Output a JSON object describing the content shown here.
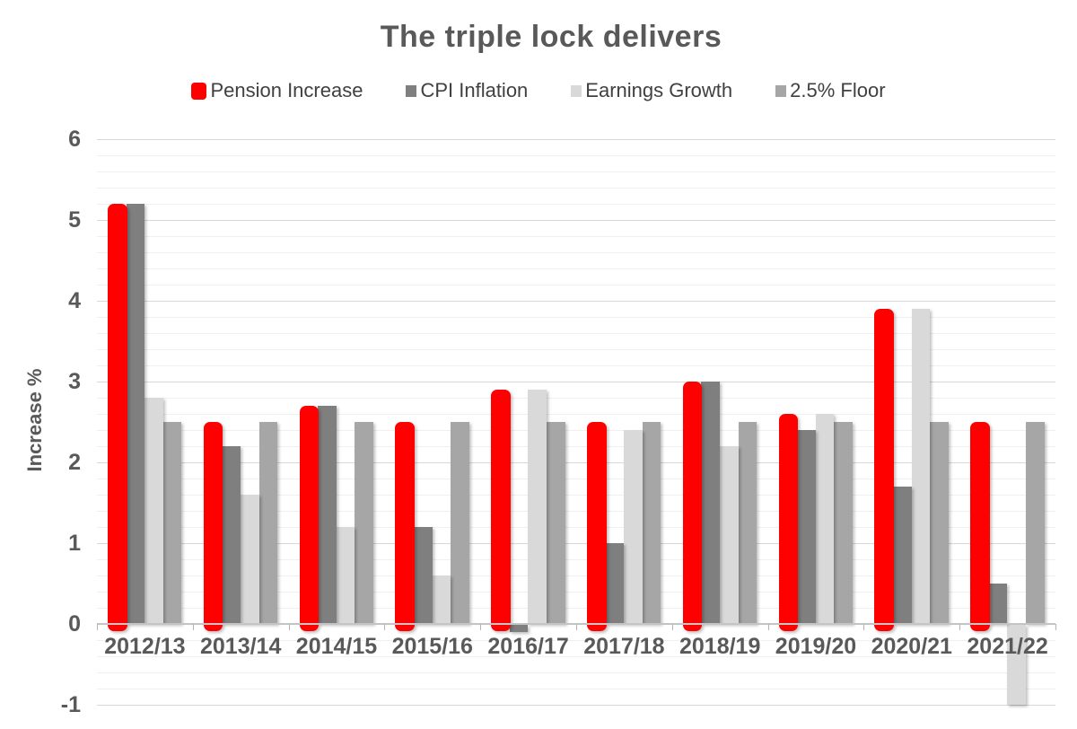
{
  "title": "The triple lock delivers",
  "colors": {
    "heading_text": "#595959",
    "axis_text": "#595959",
    "legend_text": "#404040",
    "pension_increase": "#ff0000",
    "cpi_inflation": "#7f7f7f",
    "earnings_growth": "#d9d9d9",
    "floor": "#a6a6a6",
    "gridline_minor": "#f0f0f0",
    "gridline_major": "#d8d8d8",
    "axis_line": "#c4c4c4"
  },
  "chart_data": {
    "type": "bar",
    "title": "The triple lock delivers",
    "xlabel": "",
    "ylabel": "Increase %",
    "ylim": [
      -1,
      6
    ],
    "y_major_ticks": [
      6,
      5,
      4,
      3,
      2,
      1,
      0,
      -1
    ],
    "y_minor_step": 0.2,
    "grid": true,
    "legend_position": "top",
    "categories": [
      "2012/13",
      "2013/14",
      "2014/15",
      "2015/16",
      "2016/17",
      "2017/18",
      "2018/19",
      "2019/20",
      "2020/21",
      "2021/22"
    ],
    "series": [
      {
        "name": "Pension Increase",
        "color": "#ff0000",
        "values": [
          5.2,
          2.5,
          2.7,
          2.5,
          2.9,
          2.5,
          3.0,
          2.6,
          3.9,
          2.5
        ]
      },
      {
        "name": "CPI Inflation",
        "color": "#7f7f7f",
        "values": [
          5.2,
          2.2,
          2.7,
          1.2,
          -0.1,
          1.0,
          3.0,
          2.4,
          1.7,
          0.5
        ]
      },
      {
        "name": "Earnings Growth",
        "color": "#d9d9d9",
        "values": [
          2.8,
          1.6,
          1.2,
          0.6,
          2.9,
          2.4,
          2.2,
          2.6,
          3.9,
          -1.0
        ]
      },
      {
        "name": "2.5% Floor",
        "color": "#a6a6a6",
        "values": [
          2.5,
          2.5,
          2.5,
          2.5,
          2.5,
          2.5,
          2.5,
          2.5,
          2.5,
          2.5
        ]
      }
    ]
  }
}
